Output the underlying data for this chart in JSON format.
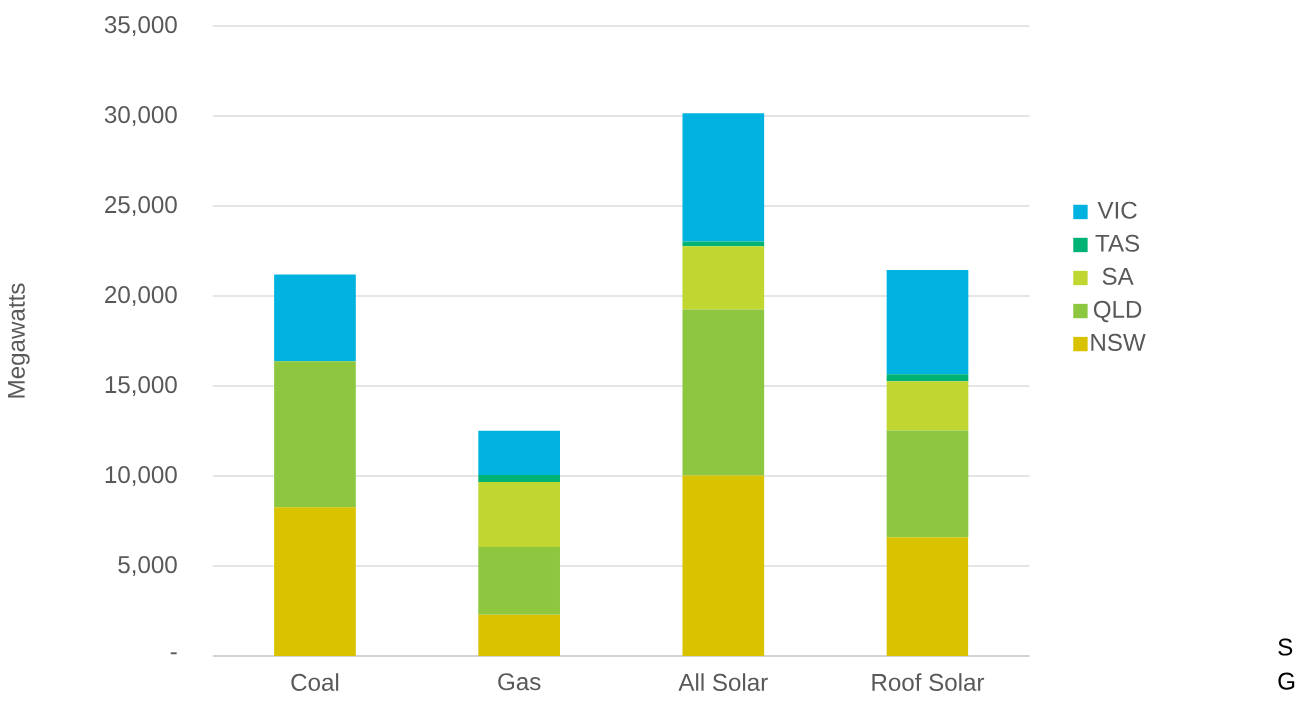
{
  "chart_data": {
    "type": "bar",
    "stacked": true,
    "ylabel": "Megawatts",
    "categories": [
      "Coal",
      "Gas",
      "All Solar",
      "Roof Solar"
    ],
    "series": [
      {
        "name": "NSW",
        "color": "#d9c200",
        "values": [
          8260,
          2290,
          10030,
          6600
        ]
      },
      {
        "name": "QLD",
        "color": "#8dc63f",
        "values": [
          8110,
          3760,
          9220,
          5930
        ]
      },
      {
        "name": "SA",
        "color": "#bfd730",
        "values": [
          0,
          3620,
          3520,
          2740
        ]
      },
      {
        "name": "TAS",
        "color": "#00b274",
        "values": [
          0,
          380,
          260,
          380
        ]
      },
      {
        "name": "VIC",
        "color": "#00b2e0",
        "values": [
          4830,
          2470,
          7130,
          5800
        ]
      }
    ],
    "ylim": [
      0,
      35000
    ],
    "yticks": [
      {
        "value": 0,
        "label": "-"
      },
      {
        "value": 5000,
        "label": "5,000"
      },
      {
        "value": 10000,
        "label": "10,000"
      },
      {
        "value": 15000,
        "label": "15,000"
      },
      {
        "value": 20000,
        "label": "20,000"
      },
      {
        "value": 25000,
        "label": "25,000"
      },
      {
        "value": 30000,
        "label": "30,000"
      },
      {
        "value": 35000,
        "label": "35,000"
      }
    ],
    "grid": "y",
    "legend": "right",
    "annotations": [
      "S",
      "G"
    ]
  }
}
